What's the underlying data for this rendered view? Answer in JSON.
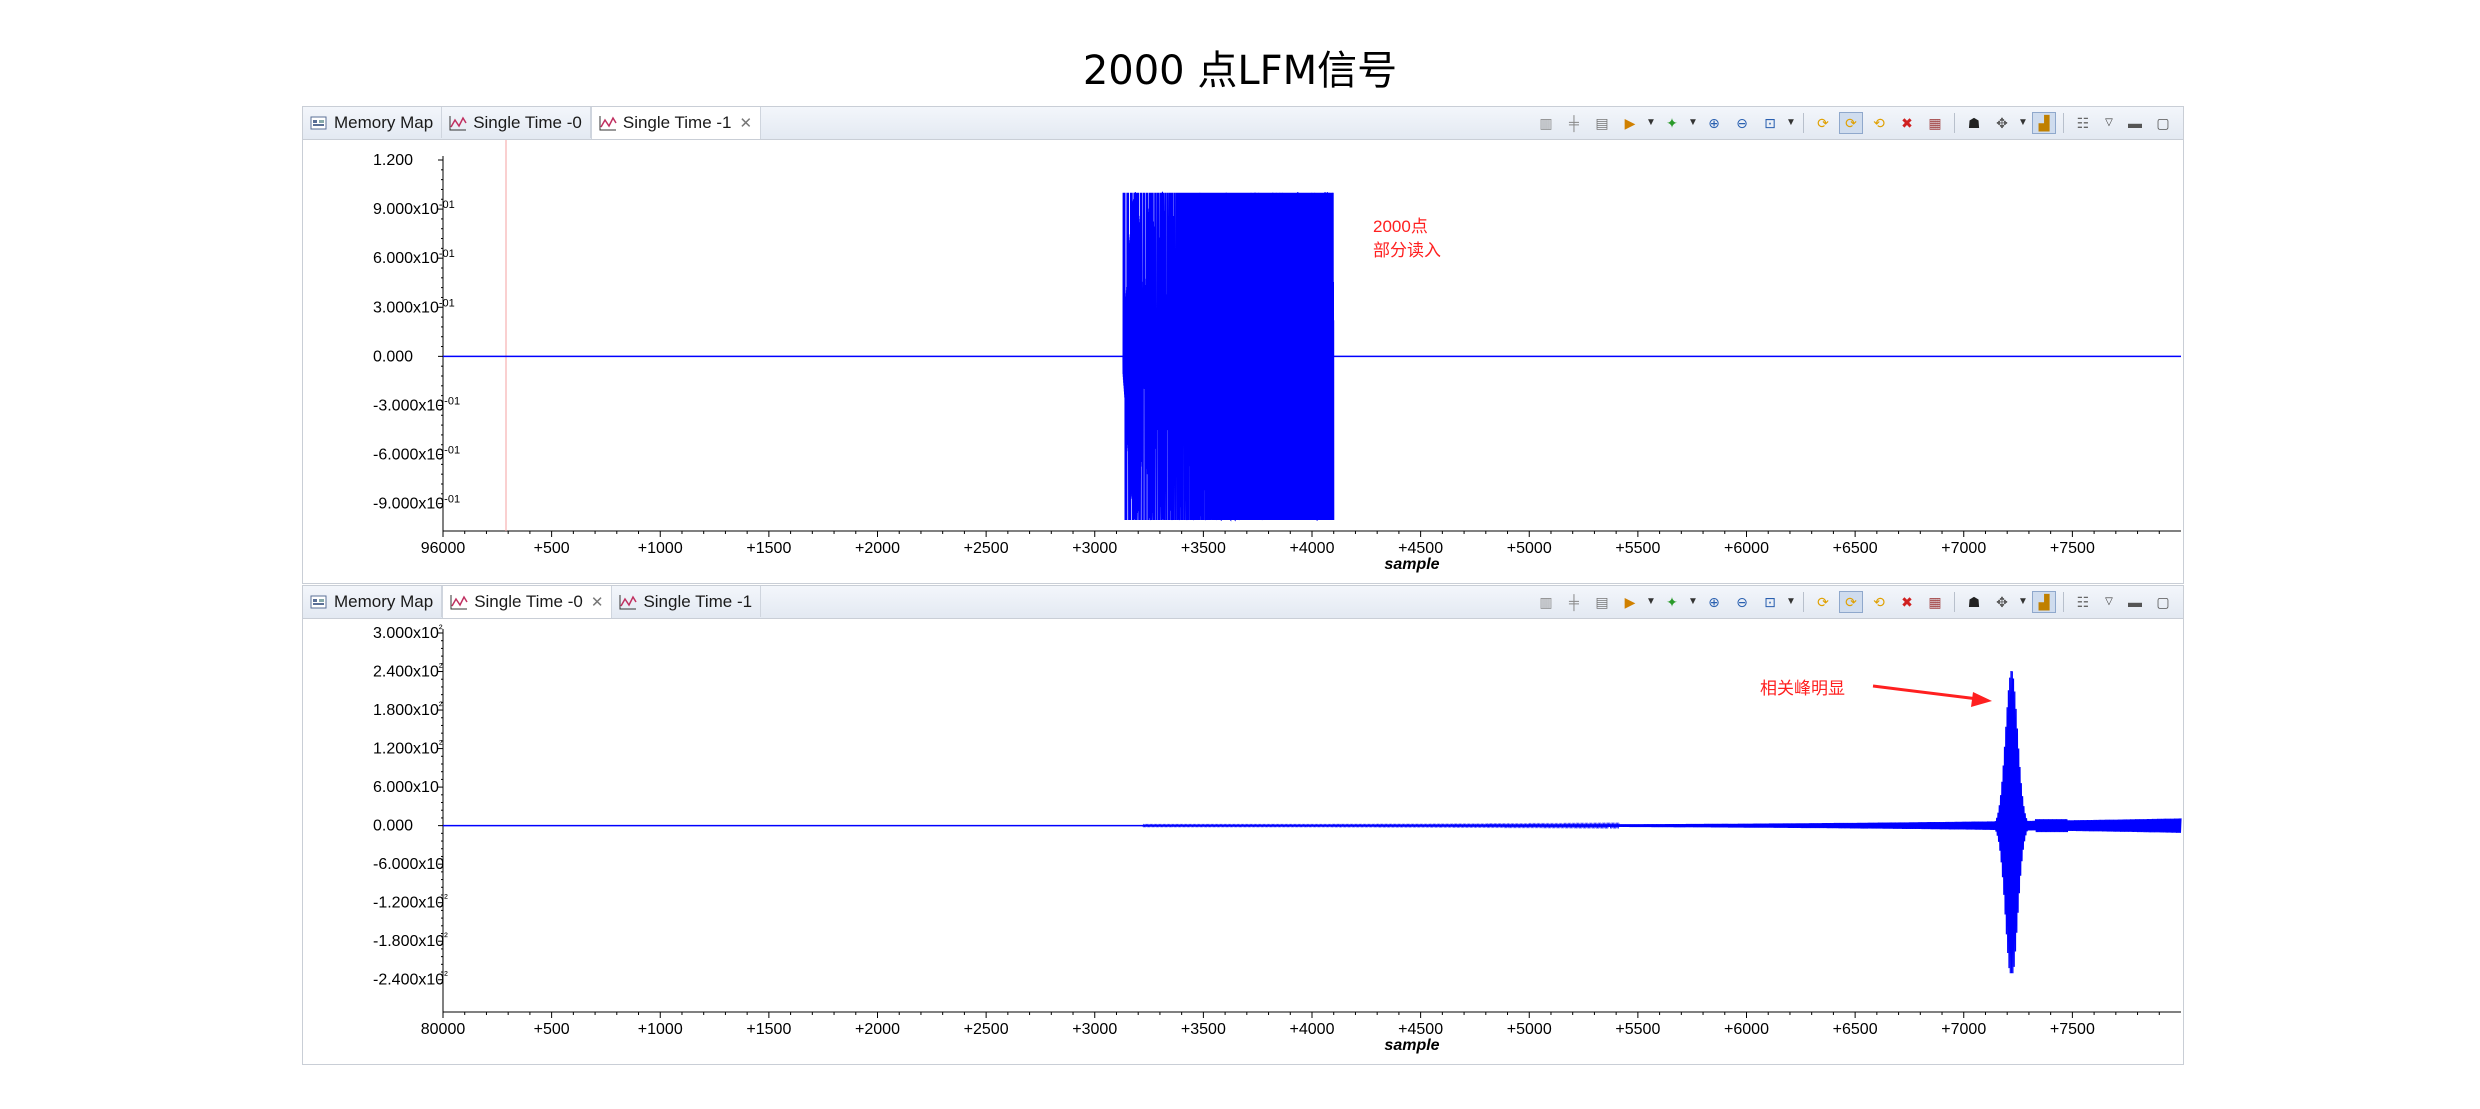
{
  "page_title": "2000 点LFM信号",
  "top_panel": {
    "tabs": [
      {
        "label": "Memory Map",
        "icon": "memory-map-icon",
        "active": false
      },
      {
        "label": "Single Time -0",
        "icon": "graph-icon",
        "active": false
      },
      {
        "label": "Single Time -1",
        "icon": "graph-icon",
        "active": true,
        "closable": true
      }
    ],
    "annotation_line1": "2000点",
    "annotation_line2": "部分读入"
  },
  "bottom_panel": {
    "tabs": [
      {
        "label": "Memory Map",
        "icon": "memory-map-icon",
        "active": false
      },
      {
        "label": "Single Time -0",
        "icon": "graph-icon",
        "active": true,
        "closable": true
      },
      {
        "label": "Single Time -1",
        "icon": "graph-icon",
        "active": false
      }
    ],
    "annotation": "相关峰明显"
  },
  "toolbar_icons": [
    "align-icon",
    "align-center-icon",
    "table-icon",
    "run-icon",
    "dropdown",
    "pin-icon",
    "dropdown",
    "zoom-in-icon",
    "zoom-out-icon",
    "zoom-fit-icon",
    "dropdown",
    "refresh-icon",
    "refresh-all-icon",
    "auto-refresh-icon",
    "clear-icon",
    "export-icon",
    "find-icon",
    "cursor-icon",
    "dropdown",
    "chart-props-icon",
    "view-menu-icon",
    "minimize-icon",
    "maximize-icon"
  ],
  "colors": {
    "signal": "#0000ff",
    "annotation": "#ff2020",
    "tabbar": "#e6ebf3",
    "cursor_line": "#f4a0a0"
  },
  "chart_data": [
    {
      "type": "line",
      "title": "",
      "xlabel": "sample",
      "ylabel": "",
      "x_range": [
        0,
        8000
      ],
      "x_tick_labels": [
        "96000",
        "+500",
        "+1000",
        "+1500",
        "+2000",
        "+2500",
        "+3000",
        "+3500",
        "+4000",
        "+4500",
        "+5000",
        "+5500",
        "+6000",
        "+6500",
        "+7000",
        "+7500"
      ],
      "y_range": [
        -1.0,
        1.2
      ],
      "y_tick_labels": [
        "1.200",
        "9.000x10-01",
        "6.000x10-01",
        "3.000x10-01",
        "0.000",
        "-3.000x10-01",
        "-6.000x10-01",
        "-9.000x10-01"
      ],
      "y_tick_values": [
        1.2,
        0.9,
        0.6,
        0.3,
        0.0,
        -0.3,
        -0.6,
        -0.9
      ],
      "series": [
        {
          "points": [
            [
              0,
              0
            ],
            [
              3130,
              0
            ],
            [
              3130,
              1.0
            ],
            [
              3130,
              -1.0
            ],
            [
              4100,
              1.0
            ],
            [
              4100,
              -1.0
            ],
            [
              4100,
              0
            ],
            [
              8000,
              0
            ]
          ],
          "lfm_burst": {
            "x_start": 3130,
            "x_end": 4100,
            "amplitude": 1.0
          }
        }
      ],
      "cursor_x": 290,
      "grid": false
    },
    {
      "type": "line",
      "title": "",
      "xlabel": "sample",
      "ylabel": "",
      "x_range": [
        0,
        8000
      ],
      "x_tick_labels": [
        "80000",
        "+500",
        "+1000",
        "+1500",
        "+2000",
        "+2500",
        "+3000",
        "+3500",
        "+4000",
        "+4500",
        "+5000",
        "+5500",
        "+6000",
        "+6500",
        "+7000",
        "+7500"
      ],
      "y_range": [
        -270,
        300
      ],
      "y_tick_labels": [
        "3.000x10²",
        "2.400x10²",
        "1.800x10²",
        "1.200x10²",
        "6.000x10",
        "0.000",
        "-6.000x10",
        "-1.200x10²",
        "-1.800x10²",
        "-2.400x10²"
      ],
      "y_tick_values": [
        300,
        240,
        180,
        120,
        60,
        0,
        -60,
        -120,
        -180,
        -240
      ],
      "series": [
        {
          "noise_start": 3220,
          "peak_x": 7220,
          "peak_max": 242,
          "peak_min": -230
        }
      ],
      "grid": false
    }
  ]
}
